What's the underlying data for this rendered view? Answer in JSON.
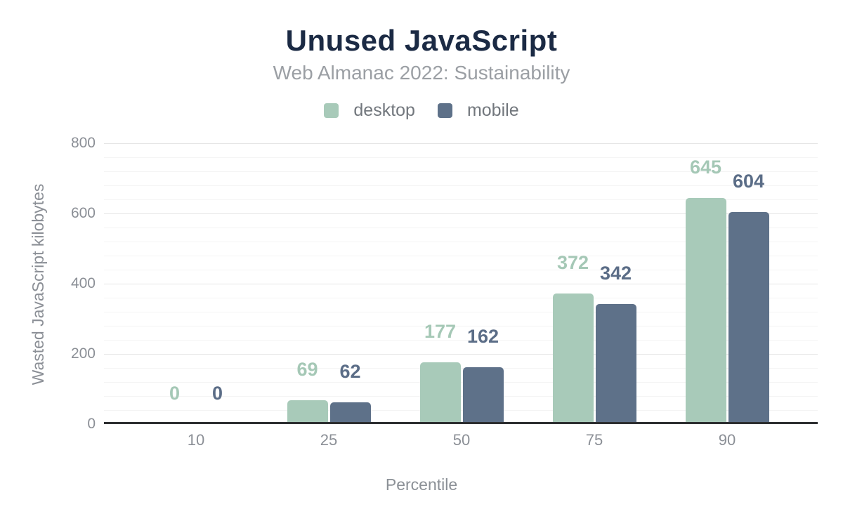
{
  "chart_data": {
    "type": "bar",
    "title": "Unused JavaScript",
    "subtitle": "Web Almanac 2022: Sustainability",
    "xlabel": "Percentile",
    "ylabel": "Wasted JavaScript kilobytes",
    "categories": [
      "10",
      "25",
      "50",
      "75",
      "90"
    ],
    "series": [
      {
        "name": "desktop",
        "color": "#a8cab9",
        "label_color": "#a5c8b6",
        "values": [
          0,
          69,
          177,
          372,
          645
        ]
      },
      {
        "name": "mobile",
        "color": "#5e7189",
        "label_color": "#5b6d87",
        "values": [
          0,
          62,
          162,
          342,
          604
        ]
      }
    ],
    "ylim": [
      0,
      800
    ],
    "yticks": [
      0,
      200,
      400,
      600,
      800
    ],
    "minor_gridline_step": 40,
    "grid": true,
    "legend_position": "top",
    "value_labels": true
  },
  "colors": {
    "title": "#1b2a44",
    "subtitle": "#9b9fa4",
    "axis_text": "#8b8f96",
    "legend_text": "#72777d",
    "axis_line": "#2d2f31",
    "gridline_major": "#e5e5e5",
    "gridline_minor": "#f4f4f4",
    "background": "#ffffff"
  }
}
